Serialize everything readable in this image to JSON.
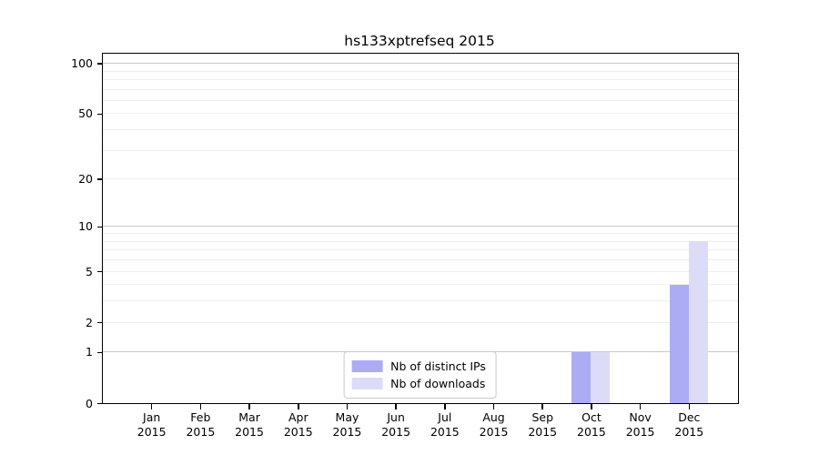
{
  "title": "hs133xptrefseq 2015",
  "chart_data": {
    "type": "bar",
    "title": "hs133xptrefseq 2015",
    "xlabel": "",
    "ylabel": "",
    "yscale": "log1p",
    "categories": [
      "Jan",
      "Feb",
      "Mar",
      "Apr",
      "May",
      "Jun",
      "Jul",
      "Aug",
      "Sep",
      "Oct",
      "Nov",
      "Dec"
    ],
    "x_tick_year": "2015",
    "series": [
      {
        "name": "Nb of distinct IPs",
        "color": "#acacf4",
        "values": [
          0,
          0,
          0,
          0,
          0,
          0,
          0,
          0,
          0,
          1,
          0,
          4
        ]
      },
      {
        "name": "Nb of downloads",
        "color": "#dcdcf8",
        "values": [
          0,
          0,
          0,
          0,
          0,
          0,
          0,
          0,
          0,
          1,
          0,
          8
        ]
      }
    ],
    "y_axis_ticks": [
      0,
      1,
      2,
      5,
      10,
      20,
      50,
      100
    ],
    "y_major_gridlines": [
      1,
      10,
      100
    ],
    "y_minor_gridlines": [
      2,
      3,
      4,
      5,
      6,
      7,
      8,
      9,
      20,
      30,
      40,
      50,
      60,
      70,
      80,
      90
    ],
    "ylim": [
      0,
      113
    ],
    "grid": true,
    "legend_position": "lower center",
    "colors": {
      "bar_distinct_ips": "#acacf4",
      "bar_downloads": "#dcdcf8",
      "major_gridline": "#c8c8c8",
      "minor_gridline": "#eeeeee",
      "axis": "#000000"
    }
  },
  "legend": {
    "items": [
      {
        "label": "Nb of distinct IPs",
        "color": "#acacf4"
      },
      {
        "label": "Nb of downloads",
        "color": "#dcdcf8"
      }
    ]
  }
}
